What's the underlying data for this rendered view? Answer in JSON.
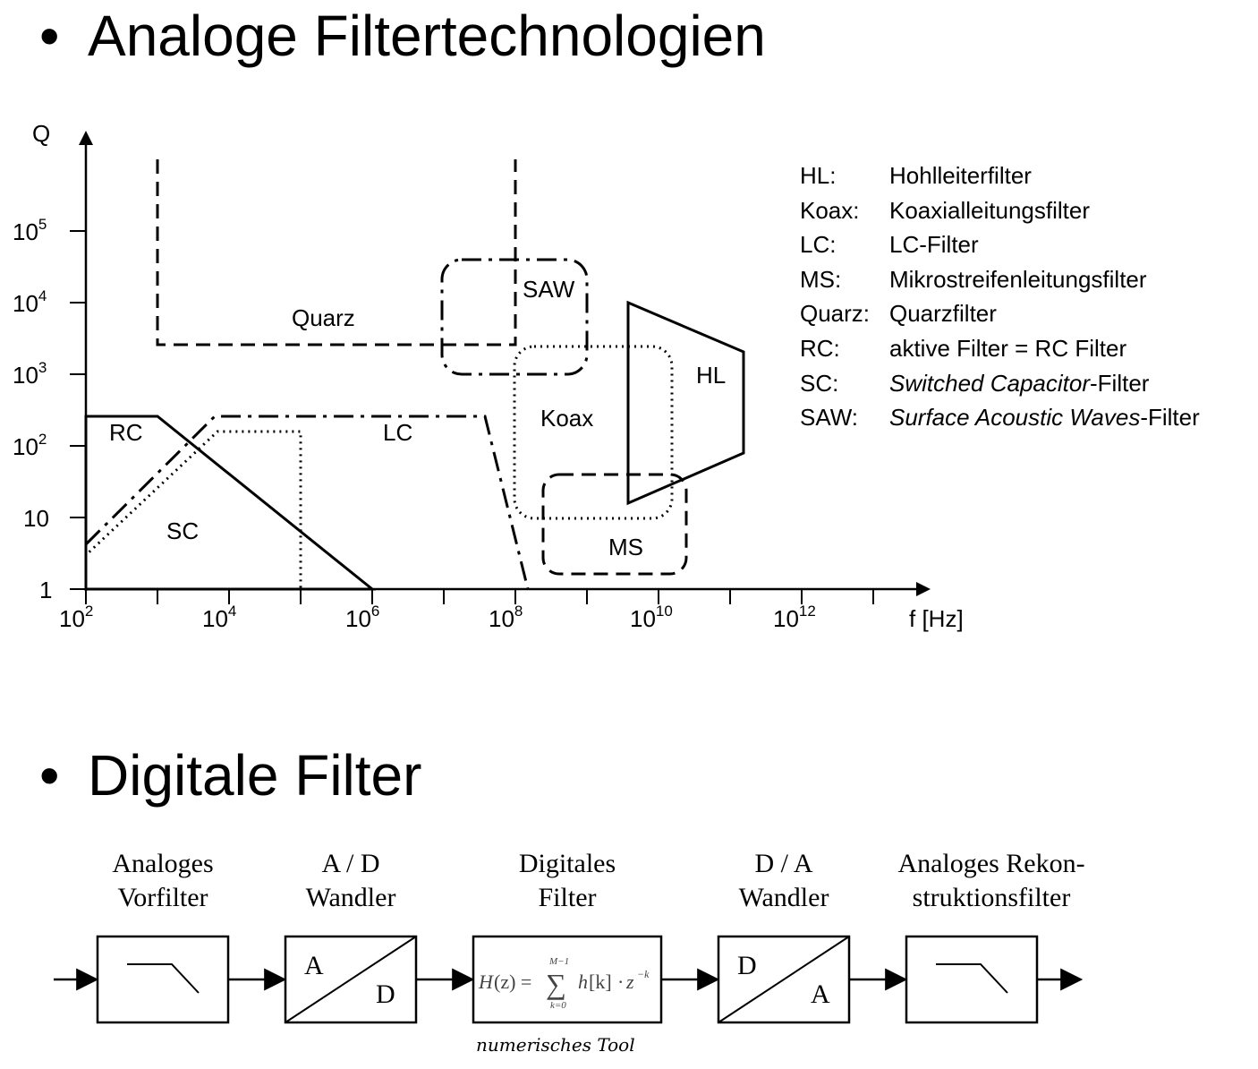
{
  "titles": {
    "analog": "Analoge Filtertechnologien",
    "digital": "Digitale Filter",
    "bullet": "•"
  },
  "chart": {
    "y_axis_label": "Q",
    "x_axis_label": "f [Hz]",
    "y_ticks": [
      {
        "base": "1",
        "exp": ""
      },
      {
        "base": "10",
        "exp": ""
      },
      {
        "base": "10",
        "exp": "2"
      },
      {
        "base": "10",
        "exp": "3"
      },
      {
        "base": "10",
        "exp": "4"
      },
      {
        "base": "10",
        "exp": "5"
      }
    ],
    "x_ticks": [
      {
        "base": "10",
        "exp": "2"
      },
      {
        "base": "10",
        "exp": "4"
      },
      {
        "base": "10",
        "exp": "6"
      },
      {
        "base": "10",
        "exp": "8"
      },
      {
        "base": "10",
        "exp": "10"
      },
      {
        "base": "10",
        "exp": "12"
      }
    ],
    "regions": {
      "quarz": "Quarz",
      "saw": "SAW",
      "hl": "HL",
      "rc": "RC",
      "lc": "LC",
      "koax": "Koax",
      "sc": "SC",
      "ms": "MS"
    }
  },
  "legend": [
    {
      "abbr": "HL:",
      "desc": "Hohlleiterfilter",
      "italic": "",
      "suffix": ""
    },
    {
      "abbr": "Koax:",
      "desc": "Koaxialleitungsfilter",
      "italic": "",
      "suffix": ""
    },
    {
      "abbr": "LC:",
      "desc": "LC-Filter",
      "italic": "",
      "suffix": ""
    },
    {
      "abbr": "MS:",
      "desc": "Mikrostreifenleitungsfilter",
      "italic": "",
      "suffix": ""
    },
    {
      "abbr": "Quarz:",
      "desc": "Quarzfilter",
      "italic": "",
      "suffix": ""
    },
    {
      "abbr": "RC:",
      "desc": "aktive Filter = RC Filter",
      "italic": "",
      "suffix": ""
    },
    {
      "abbr": "SC:",
      "desc": "",
      "italic": "Switched Capacitor",
      "suffix": "-Filter"
    },
    {
      "abbr": "SAW:",
      "desc": "",
      "italic": "Surface Acoustic Waves",
      "suffix": "-Filter"
    }
  ],
  "chain": {
    "blocks": [
      {
        "label_line1": "Analoges",
        "label_line2": "Vorfilter"
      },
      {
        "label_line1": "A / D",
        "label_line2": "Wandler",
        "in": "A",
        "out": "D"
      },
      {
        "label_line1": "Digitales",
        "label_line2": "Filter"
      },
      {
        "label_line1": "D / A",
        "label_line2": "Wandler",
        "in": "D",
        "out": "A"
      },
      {
        "label_line1": "Analoges Rekon-",
        "label_line2": "struktionsfilter"
      }
    ],
    "formula": {
      "lhs": "H",
      "arg": "(z) =",
      "sum_upper": "M−1",
      "sum_lower": "k=0",
      "sigma": "∑",
      "term_h": "h",
      "term_k": "[k]",
      "dot": "·",
      "term_z": "z",
      "term_exp": "−k"
    },
    "annotation": "numerisches Tool"
  }
}
